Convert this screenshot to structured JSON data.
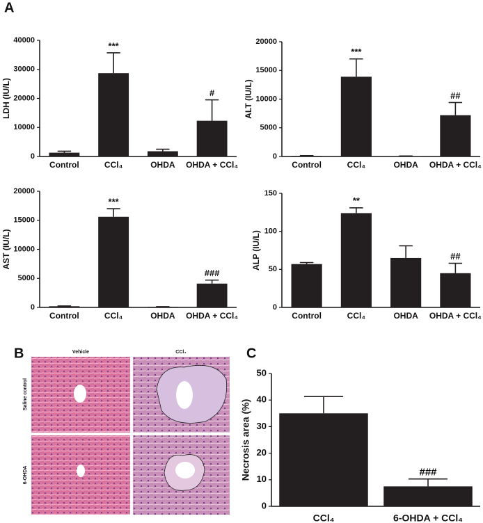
{
  "panel_labels": [
    "A",
    "B",
    "C"
  ],
  "figure_b": {
    "column_labels": [
      "Vehicle",
      "CCl₄"
    ],
    "row_labels": [
      "Saline control",
      "6-OHDA"
    ]
  },
  "chart_data": [
    {
      "type": "bar",
      "ylabel": "LDH (IU/L)",
      "categories": [
        "Control",
        "CCl₄",
        "OHDA",
        "OHDA + CCl₄"
      ],
      "values": [
        1300,
        28700,
        1800,
        12300
      ],
      "errors": [
        500,
        7000,
        700,
        7200
      ],
      "annotations": [
        null,
        "***",
        null,
        "#"
      ],
      "color": "#231f20",
      "ylim": [
        0,
        40000
      ],
      "yticks": [
        0,
        10000,
        20000,
        30000,
        40000
      ]
    },
    {
      "type": "bar",
      "ylabel": "ALT (IU/L)",
      "categories": [
        "Control",
        "CCl₄",
        "OHDA",
        "OHDA + CCl₄"
      ],
      "values": [
        100,
        13900,
        50,
        7200
      ],
      "errors": [
        50,
        3100,
        30,
        2200
      ],
      "annotations": [
        null,
        "***",
        null,
        "##"
      ],
      "color": "#231f20",
      "ylim": [
        0,
        20000
      ],
      "yticks": [
        0,
        5000,
        10000,
        15000,
        20000
      ]
    },
    {
      "type": "bar",
      "ylabel": "AST (IU/L)",
      "categories": [
        "Control",
        "CCl₄",
        "OHDA",
        "OHDA + CCl₄"
      ],
      "values": [
        200,
        15600,
        100,
        4100
      ],
      "errors": [
        50,
        1400,
        30,
        600
      ],
      "annotations": [
        null,
        "***",
        null,
        "###"
      ],
      "color": "#231f20",
      "ylim": [
        0,
        20000
      ],
      "yticks": [
        0,
        5000,
        10000,
        15000,
        20000
      ]
    },
    {
      "type": "bar",
      "ylabel": "ALP (IU/L)",
      "categories": [
        "Control",
        "CCl₄",
        "OHDA",
        "OHDA + CCl₄"
      ],
      "values": [
        57,
        124,
        65,
        45
      ],
      "errors": [
        2,
        7,
        16,
        13
      ],
      "annotations": [
        null,
        "**",
        null,
        "##"
      ],
      "color": "#231f20",
      "ylim": [
        0,
        150
      ],
      "yticks": [
        0,
        50,
        100,
        150
      ]
    },
    {
      "type": "bar",
      "ylabel": "Necrosis area (%)",
      "categories": [
        "CCl₄",
        "6-OHDA + CCl₄"
      ],
      "values": [
        35,
        7.5
      ],
      "errors": [
        6.3,
        2.8
      ],
      "annotations": [
        null,
        "###"
      ],
      "color": "#231f20",
      "ylim": [
        0,
        50
      ],
      "yticks": [
        0,
        10,
        20,
        30,
        40,
        50
      ]
    }
  ]
}
